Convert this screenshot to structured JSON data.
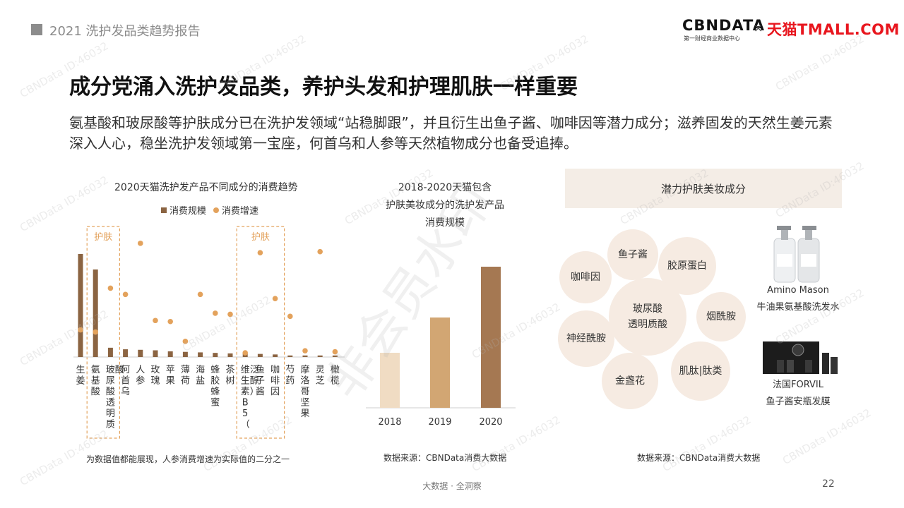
{
  "header": {
    "report_title": "2021 洗护发品类趋势报告"
  },
  "logos": {
    "cbndata": "CBNDATA",
    "cbndata_sub": "第一财经商业数据中心",
    "separator": "×",
    "tmall": "天猫TMALL.COM"
  },
  "title": "成分党涌入洗护发品类，养护头发和护理肌肤一样重要",
  "intro": "氨基酸和玻尿酸等护肤成分已在洗护发领域“站稳脚跟”，并且衍生出鱼子酱、咖啡因等潜力成分；滋养固发的天然生姜元素深入人心，稳坐洗护发领域第一宝座，何首乌和人参等天然植物成分也备受追捧。",
  "chart1": {
    "title": "2020天猫洗护发产品不同成分的消费趋势",
    "legend_bar": "消费规模",
    "legend_dot": "消费增速",
    "highlight_label_1": "护肤",
    "highlight_label_2": "护肤",
    "note": "为数据值都能展现，人参消费增速为实际值的二分之一"
  },
  "chart2": {
    "title_line1": "2018-2020天猫包含",
    "title_line2": "护肤美妆成分的洗护发产品",
    "title_line3": "消费规模",
    "source": "数据来源：CBNData消费大数据"
  },
  "panel": {
    "header": "潜力护肤美妆成分",
    "bubbles": [
      "咖啡因",
      "鱼子酱",
      "胶原蛋白",
      "玻尿酸",
      "透明质酸",
      "烟酰胺",
      "神经酰胺",
      "金盏花",
      "肌肽|肽类"
    ],
    "product1_name": "Amino Mason",
    "product1_desc": "牛油果氨基酸洗发水",
    "product2_name": "法国FORVIL",
    "product2_desc": "鱼子酱安瓶发膜",
    "source": "数据来源：CBNData消费大数据"
  },
  "footer": {
    "center": "大数据 · 全洞察",
    "page": "22"
  },
  "watermark": {
    "id": "CBNData ID:46032",
    "big": "非会员水印"
  },
  "colors": {
    "bar": "#8b6442",
    "dot": "#e3a25c",
    "highlight": "#e3a25c",
    "bar2_2018": "#f0dcc3",
    "bar2_2019": "#d2a673",
    "bar2_2020": "#a57852"
  },
  "chart_data": [
    {
      "type": "bar+scatter",
      "title": "2020天猫洗护发产品不同成分的消费趋势",
      "categories": [
        "生姜",
        "氨基酸",
        "玻尿酸透明质酸",
        "何首乌",
        "人参",
        "玫瑰",
        "苹果",
        "薄荷",
        "海盐",
        "蜂胶蜂蜜",
        "茶树",
        "维生素B5（泛醇）",
        "鱼子酱",
        "咖啡因",
        "芍药",
        "摩洛哥坚果",
        "灵芝",
        "橄榄"
      ],
      "series": [
        {
          "name": "消费规模",
          "kind": "bar",
          "values": [
            100,
            85,
            9,
            7.5,
            7,
            6.5,
            5.5,
            5,
            4.5,
            4,
            3.5,
            3.5,
            3,
            2.5,
            1.5,
            1.5,
            1.5,
            1.5
          ]
        },
        {
          "name": "消费增速",
          "kind": "dot",
          "values": [
            26,
            24,
            66,
            60,
            109,
            35,
            34,
            15,
            60,
            42,
            41,
            4,
            100,
            56,
            39,
            6,
            101,
            5
          ]
        }
      ],
      "highlight_groups": [
        [
          1,
          2
        ],
        [
          11,
          13
        ]
      ],
      "grid": false
    },
    {
      "type": "bar",
      "title": "2018-2020天猫包含护肤美妆成分的洗护发产品消费规模",
      "categories": [
        "2018",
        "2019",
        "2020"
      ],
      "values": [
        39,
        64,
        100
      ],
      "grid": false
    }
  ]
}
